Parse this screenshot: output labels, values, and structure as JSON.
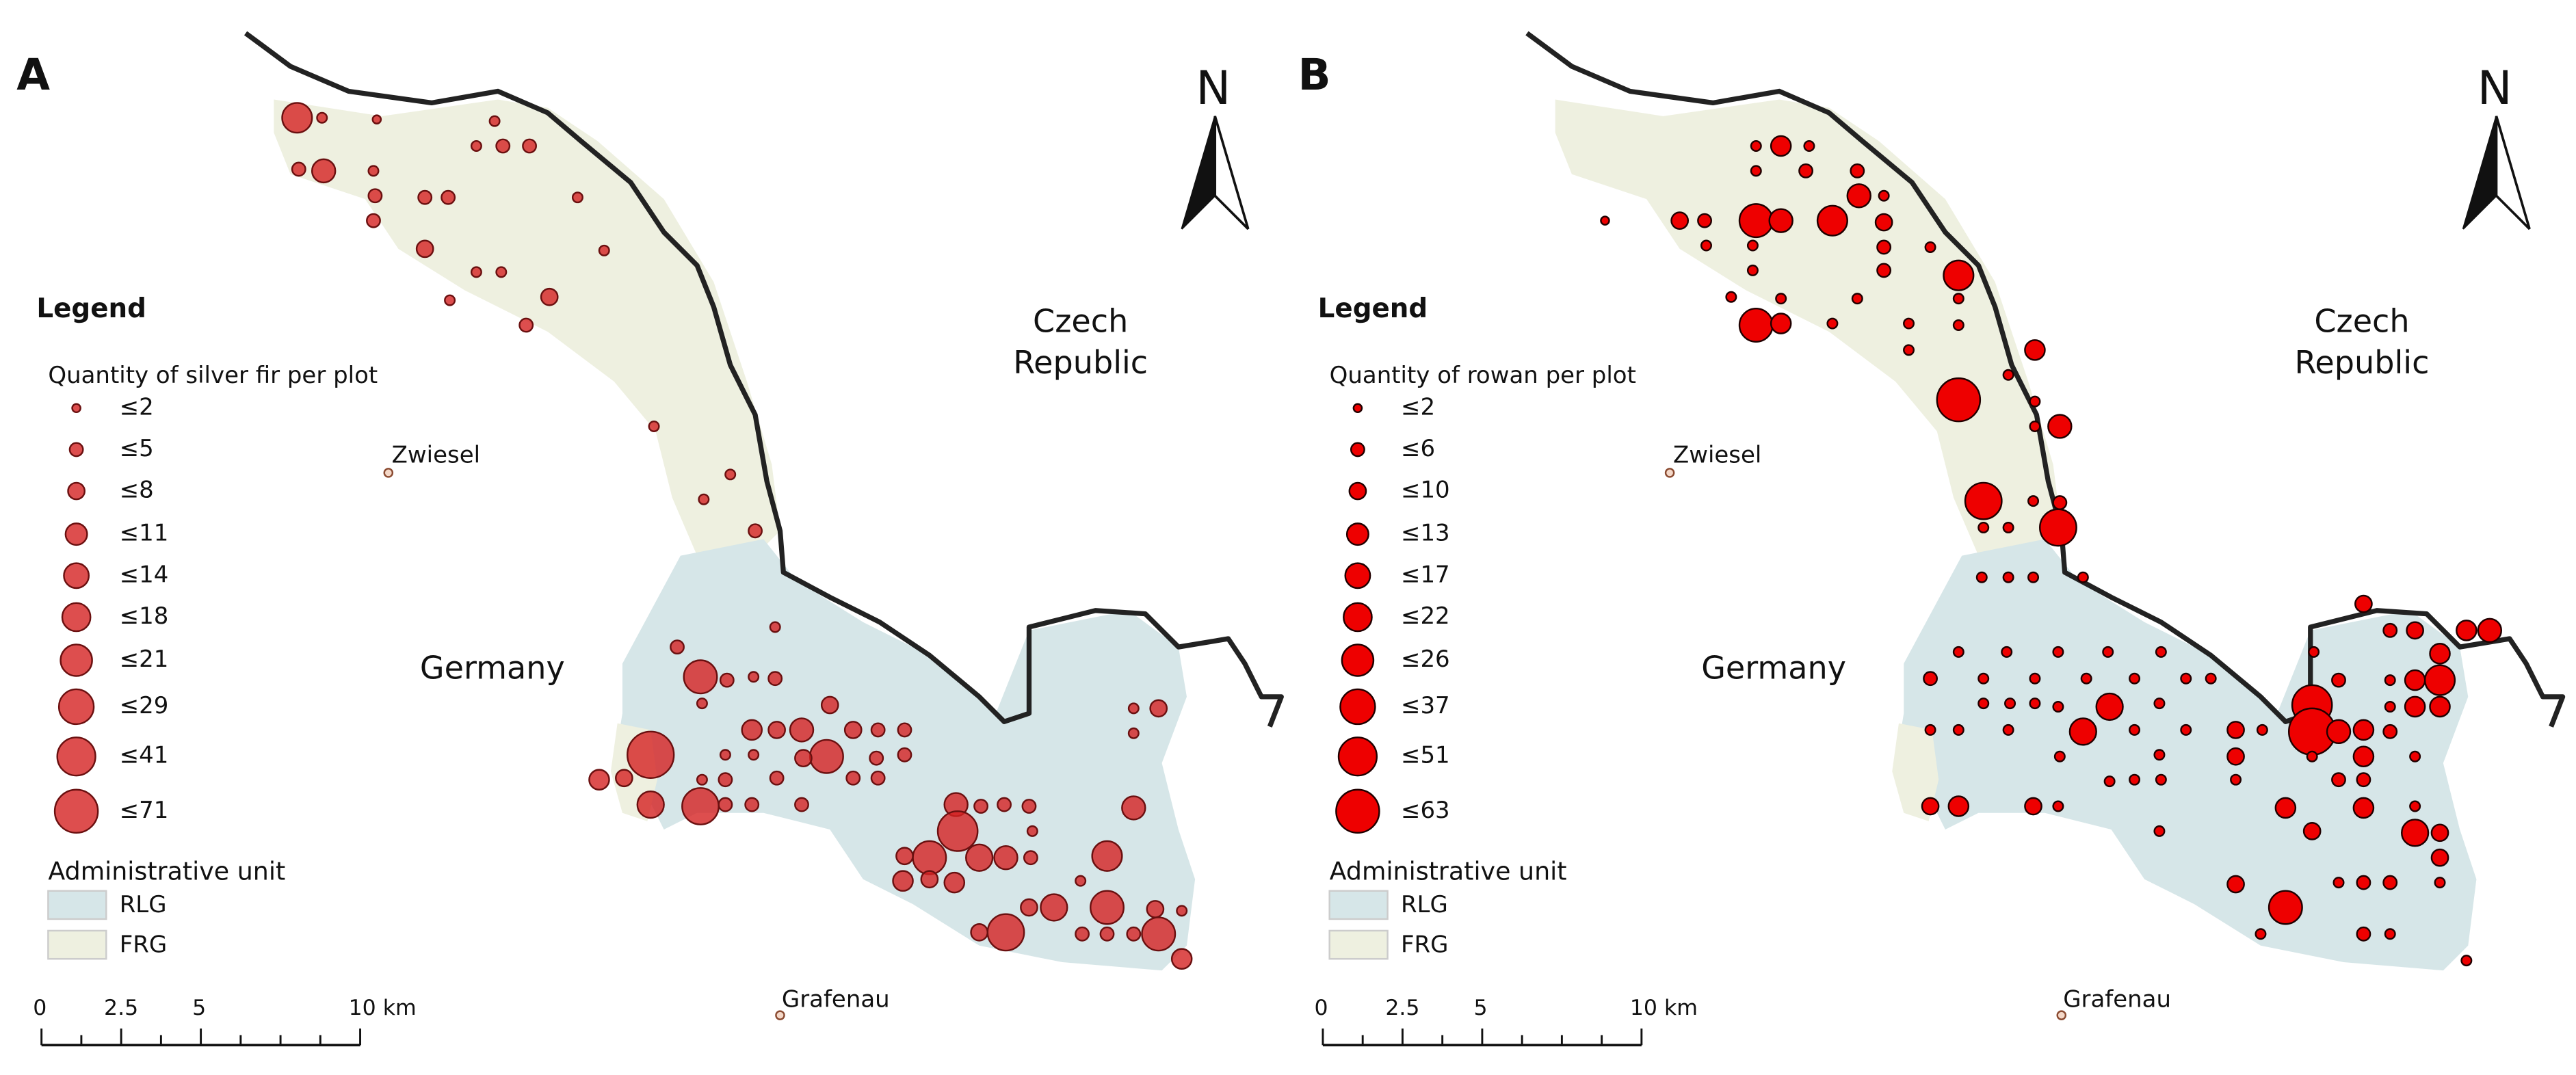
{
  "panels": [
    {
      "label": "A",
      "north": "N",
      "legend": {
        "title": "Legend",
        "subtitle": "Quantity of silver fir per plot",
        "classes": [
          "≤2",
          "≤5",
          "≤8",
          "≤11",
          "≤14",
          "≤18",
          "≤21",
          "≤29",
          "≤41",
          "≤71"
        ],
        "admin_title": "Administrative unit",
        "admin_units": [
          "RLG",
          "FRG"
        ]
      },
      "places": {
        "zwiesel": "Zwiesel",
        "germany": "Germany",
        "czech": [
          "Czech",
          "Republic"
        ],
        "grafenau": "Grafenau"
      },
      "scale": [
        "0",
        "2.5",
        "5",
        "10 km"
      ]
    },
    {
      "label": "B",
      "north": "N",
      "legend": {
        "title": "Legend",
        "subtitle": "Quantity of rowan per plot",
        "classes": [
          "≤2",
          "≤6",
          "≤10",
          "≤13",
          "≤17",
          "≤22",
          "≤26",
          "≤37",
          "≤51",
          "≤63"
        ],
        "admin_title": "Administrative unit",
        "admin_units": [
          "RLG",
          "FRG"
        ]
      },
      "places": {
        "zwiesel": "Zwiesel",
        "germany": "Germany",
        "czech": [
          "Czech",
          "Republic"
        ],
        "grafenau": "Grafenau"
      },
      "scale": [
        "0",
        "2.5",
        "5",
        "10 km"
      ]
    }
  ]
}
